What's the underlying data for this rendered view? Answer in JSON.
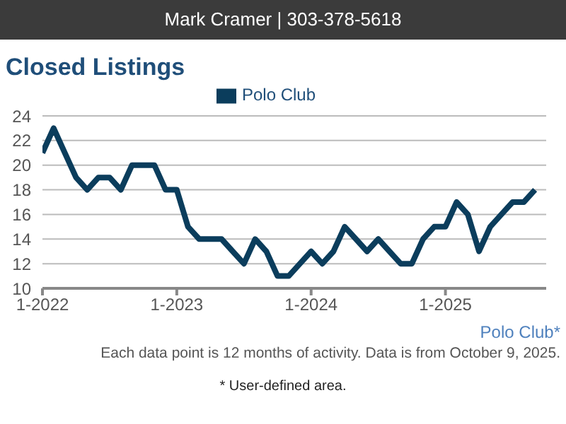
{
  "chart_data": {
    "type": "line",
    "title": "Closed Listings",
    "x": [
      "2022-01",
      "2022-02",
      "2022-03",
      "2022-04",
      "2022-05",
      "2022-06",
      "2022-07",
      "2022-08",
      "2022-09",
      "2022-10",
      "2022-11",
      "2022-12",
      "2023-01",
      "2023-02",
      "2023-03",
      "2023-04",
      "2023-05",
      "2023-06",
      "2023-07",
      "2023-08",
      "2023-09",
      "2023-10",
      "2023-11",
      "2023-12",
      "2024-01",
      "2024-02",
      "2024-03",
      "2024-04",
      "2024-05",
      "2024-06",
      "2024-07",
      "2024-08",
      "2024-09",
      "2024-10",
      "2024-11",
      "2024-12",
      "2025-01",
      "2025-02",
      "2025-03",
      "2025-04",
      "2025-05",
      "2025-06",
      "2025-07",
      "2025-08",
      "2025-09"
    ],
    "series": [
      {
        "name": "Polo Club",
        "color": "#0b3d5c",
        "values": [
          21,
          23,
          21,
          19,
          18,
          19,
          19,
          18,
          20,
          20,
          20,
          18,
          18,
          15,
          14,
          14,
          14,
          13,
          12,
          14,
          13,
          11,
          11,
          12,
          13,
          12,
          13,
          15,
          14,
          13,
          14,
          13,
          12,
          12,
          14,
          15,
          15,
          17,
          16,
          13,
          15,
          16,
          17,
          17,
          18
        ]
      }
    ],
    "xlim": [
      "2022-01",
      "2025-10"
    ],
    "xticks": [
      {
        "value": "2022-01",
        "label": "1-2022"
      },
      {
        "value": "2023-01",
        "label": "1-2023"
      },
      {
        "value": "2024-01",
        "label": "1-2024"
      },
      {
        "value": "2025-01",
        "label": "1-2025"
      }
    ],
    "ylim": [
      10,
      24
    ],
    "yticks": [
      10,
      12,
      14,
      16,
      18,
      20,
      22,
      24
    ],
    "grid": "y",
    "legend": "top",
    "marker": "none",
    "line_style": "solid",
    "annotations": [
      "Mark Cramer | 303-378-5618",
      "Polo Club*",
      "Each data point is 12 months of activity. Data is from October 9, 2025.",
      "* User-defined area."
    ]
  }
}
